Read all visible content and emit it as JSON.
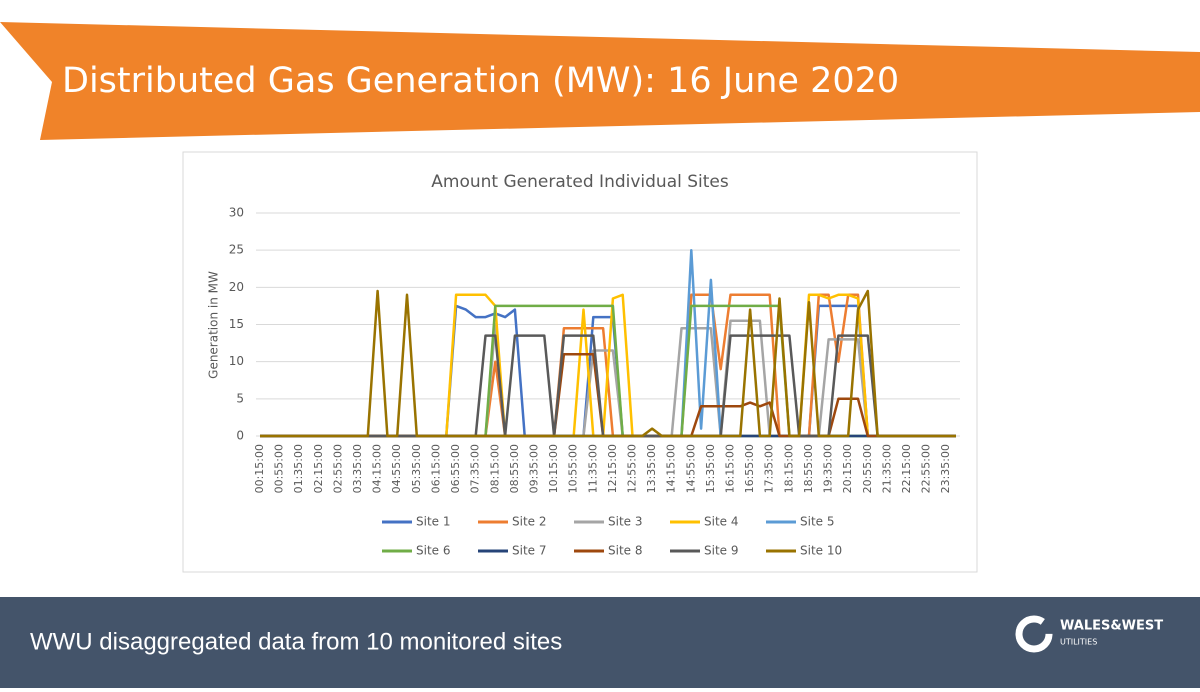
{
  "header": {
    "title": "Distributed Gas Generation (MW): 16 June 2020"
  },
  "footer": {
    "caption": "WWU disaggregated data from 10 monitored sites",
    "logo_name": "WALES&WEST",
    "logo_sub": "UTILITIES"
  },
  "chart_data": {
    "type": "line",
    "title": "Amount Generated Individual Sites",
    "y_label": "Generation in MW",
    "ylim": [
      0,
      30
    ],
    "yticks": [
      0,
      5,
      10,
      15,
      20,
      25,
      30
    ],
    "grid": true,
    "legend": "bottom",
    "categories": [
      "00:15:00",
      null,
      "00:55:00",
      null,
      "01:35:00",
      null,
      "02:15:00",
      null,
      "02:55:00",
      null,
      "03:35:00",
      null,
      "04:15:00",
      null,
      "04:55:00",
      null,
      "05:35:00",
      null,
      "06:15:00",
      null,
      "06:55:00",
      null,
      "07:35:00",
      null,
      "08:15:00",
      null,
      "08:55:00",
      null,
      "09:35:00",
      null,
      "10:15:00",
      null,
      "10:55:00",
      null,
      "11:35:00",
      null,
      "12:15:00",
      null,
      "12:55:00",
      null,
      "13:35:00",
      null,
      "14:15:00",
      null,
      "14:55:00",
      null,
      "15:35:00",
      null,
      "16:15:00",
      null,
      "16:55:00",
      null,
      "17:35:00",
      null,
      "18:15:00",
      null,
      "18:55:00",
      null,
      "19:35:00",
      null,
      "20:15:00",
      null,
      "20:55:00",
      null,
      "21:35:00",
      null,
      "22:15:00",
      null,
      "22:55:00",
      null,
      "23:35:00",
      null
    ],
    "series": [
      {
        "name": "Site 1",
        "color": "#4472c4",
        "values": [
          0,
          0,
          0,
          0,
          0,
          0,
          0,
          0,
          0,
          0,
          0,
          0,
          0,
          0,
          0,
          0,
          0,
          0,
          0,
          0,
          17.5,
          17,
          16,
          16,
          16.5,
          16,
          17,
          0,
          0,
          0,
          0,
          0,
          0,
          0,
          16,
          16,
          16,
          0,
          0,
          0,
          0,
          0,
          0,
          0,
          0,
          0,
          0,
          0,
          0,
          0,
          0,
          0,
          0,
          0,
          0,
          0,
          0,
          17.5,
          17.5,
          17.5,
          17.5,
          17.5,
          0,
          0,
          0,
          0,
          0,
          0,
          0,
          0,
          0,
          0
        ]
      },
      {
        "name": "Site 2",
        "color": "#ed7d31",
        "values": [
          0,
          0,
          0,
          0,
          0,
          0,
          0,
          0,
          0,
          0,
          0,
          0,
          0,
          0,
          0,
          0,
          0,
          0,
          0,
          0,
          0,
          0,
          0,
          0,
          10,
          0,
          0,
          0,
          0,
          0,
          0,
          14.5,
          14.5,
          14.5,
          14.5,
          14.5,
          0,
          0,
          0,
          0,
          0,
          0,
          0,
          0,
          19,
          19,
          19,
          9,
          19,
          19,
          19,
          19,
          19,
          0,
          0,
          0,
          0,
          19,
          19,
          10,
          19,
          19,
          0,
          0,
          0,
          0,
          0,
          0,
          0,
          0,
          0,
          0
        ]
      },
      {
        "name": "Site 3",
        "color": "#a5a5a5",
        "values": [
          0,
          0,
          0,
          0,
          0,
          0,
          0,
          0,
          0,
          0,
          0,
          0,
          0,
          0,
          0,
          0,
          0,
          0,
          0,
          0,
          0,
          0,
          0,
          0,
          15,
          0,
          0,
          0,
          0,
          0,
          0,
          0,
          0,
          0,
          11.5,
          11.5,
          11.5,
          0,
          0,
          0,
          0,
          0,
          0,
          14.5,
          14.5,
          14.5,
          14.5,
          0,
          15.5,
          15.5,
          15.5,
          15.5,
          0,
          0,
          0,
          0,
          0,
          0,
          13,
          13,
          13,
          13,
          0,
          0,
          0,
          0,
          0,
          0,
          0,
          0,
          0,
          0
        ]
      },
      {
        "name": "Site 4",
        "color": "#ffc000",
        "values": [
          0,
          0,
          0,
          0,
          0,
          0,
          0,
          0,
          0,
          0,
          0,
          0,
          0,
          0,
          0,
          0,
          0,
          0,
          0,
          0,
          19,
          19,
          19,
          19,
          17.5,
          0,
          0,
          0,
          0,
          0,
          0,
          0,
          0,
          17,
          0,
          0,
          18.5,
          19,
          0,
          0,
          0,
          0,
          0,
          0,
          0,
          0,
          0,
          0,
          0,
          0,
          0,
          0,
          0,
          0,
          0,
          0,
          19,
          19,
          18.5,
          19,
          19,
          18.5,
          0,
          0,
          0,
          0,
          0,
          0,
          0,
          0,
          0,
          0
        ]
      },
      {
        "name": "Site 5",
        "color": "#5b9bd5",
        "values": [
          0,
          0,
          0,
          0,
          0,
          0,
          0,
          0,
          0,
          0,
          0,
          0,
          0,
          0,
          0,
          0,
          0,
          0,
          0,
          0,
          0,
          0,
          0,
          0,
          0,
          0,
          0,
          0,
          0,
          0,
          0,
          0,
          0,
          0,
          0,
          0,
          0,
          0,
          0,
          0,
          0,
          0,
          0,
          0,
          25,
          1,
          21,
          0,
          0,
          0,
          0,
          0,
          0,
          0,
          0,
          0,
          0,
          0,
          0,
          0,
          0,
          0,
          0,
          0,
          0,
          0,
          0,
          0,
          0,
          0,
          0,
          0
        ]
      },
      {
        "name": "Site 6",
        "color": "#70ad47",
        "values": [
          0,
          0,
          0,
          0,
          0,
          0,
          0,
          0,
          0,
          0,
          0,
          0,
          0,
          0,
          0,
          0,
          0,
          0,
          0,
          0,
          0,
          0,
          0,
          0,
          17.5,
          17.5,
          17.5,
          17.5,
          17.5,
          17.5,
          17.5,
          17.5,
          17.5,
          17.5,
          17.5,
          17.5,
          17.5,
          0,
          0,
          0,
          0,
          0,
          0,
          0,
          17.5,
          17.5,
          17.5,
          17.5,
          17.5,
          17.5,
          17.5,
          17.5,
          17.5,
          17.5,
          0,
          0,
          0,
          0,
          0,
          0,
          0,
          0,
          0,
          0,
          0,
          0,
          0,
          0,
          0,
          0,
          0,
          0
        ]
      },
      {
        "name": "Site 7",
        "color": "#264478",
        "values": [
          0,
          0,
          0,
          0,
          0,
          0,
          0,
          0,
          0,
          0,
          0,
          0,
          0,
          0,
          0,
          0,
          0,
          0,
          0,
          0,
          0,
          0,
          0,
          0,
          0,
          0,
          0,
          0,
          0,
          0,
          0,
          0,
          0,
          0,
          0,
          0,
          0,
          0,
          0,
          0,
          0,
          0,
          0,
          0,
          0,
          0,
          0,
          0,
          0,
          0,
          0,
          0,
          0,
          0,
          0,
          0,
          0,
          0,
          0,
          0,
          0,
          0,
          0,
          0,
          0,
          0,
          0,
          0,
          0,
          0,
          0,
          0
        ]
      },
      {
        "name": "Site 8",
        "color": "#9e480e",
        "values": [
          0,
          0,
          0,
          0,
          0,
          0,
          0,
          0,
          0,
          0,
          0,
          0,
          0,
          0,
          0,
          0,
          0,
          0,
          0,
          0,
          0,
          0,
          0,
          0,
          0,
          0,
          0,
          0,
          0,
          0,
          0,
          11,
          11,
          11,
          11,
          0,
          0,
          0,
          0,
          0,
          0,
          0,
          0,
          0,
          0,
          4,
          4,
          4,
          4,
          4,
          4.5,
          4,
          4.5,
          0,
          0,
          0,
          0,
          0,
          0,
          5,
          5,
          5,
          0,
          0,
          0,
          0,
          0,
          0,
          0,
          0,
          0,
          0
        ]
      },
      {
        "name": "Site 9",
        "color": "#595959",
        "values": [
          0,
          0,
          0,
          0,
          0,
          0,
          0,
          0,
          0,
          0,
          0,
          0,
          0,
          0,
          0,
          0,
          0,
          0,
          0,
          0,
          0,
          0,
          0,
          13.5,
          13.5,
          0,
          13.5,
          13.5,
          13.5,
          13.5,
          0,
          13.5,
          13.5,
          13.5,
          13.5,
          0,
          0,
          0,
          0,
          0,
          0,
          0,
          0,
          0,
          0,
          0,
          0,
          0,
          13.5,
          13.5,
          13.5,
          13.5,
          13.5,
          13.5,
          13.5,
          0,
          0,
          0,
          0,
          13.5,
          13.5,
          13.5,
          13.5,
          0,
          0,
          0,
          0,
          0,
          0,
          0,
          0,
          0
        ]
      },
      {
        "name": "Site 10",
        "color": "#997300",
        "values": [
          0,
          0,
          0,
          0,
          0,
          0,
          0,
          0,
          0,
          0,
          0,
          0,
          19.5,
          0,
          0,
          19,
          0,
          0,
          0,
          0,
          0,
          0,
          0,
          0,
          0,
          0,
          0,
          0,
          0,
          0,
          0,
          0,
          0,
          0,
          0,
          0,
          0,
          0,
          0,
          0,
          1,
          0,
          0,
          0,
          0,
          0,
          0,
          0,
          0,
          0,
          17,
          0,
          0,
          18.5,
          0,
          0,
          18,
          0,
          0,
          0,
          0,
          17,
          19.5,
          0,
          0,
          0,
          0,
          0,
          0,
          0,
          0,
          0
        ]
      }
    ]
  }
}
